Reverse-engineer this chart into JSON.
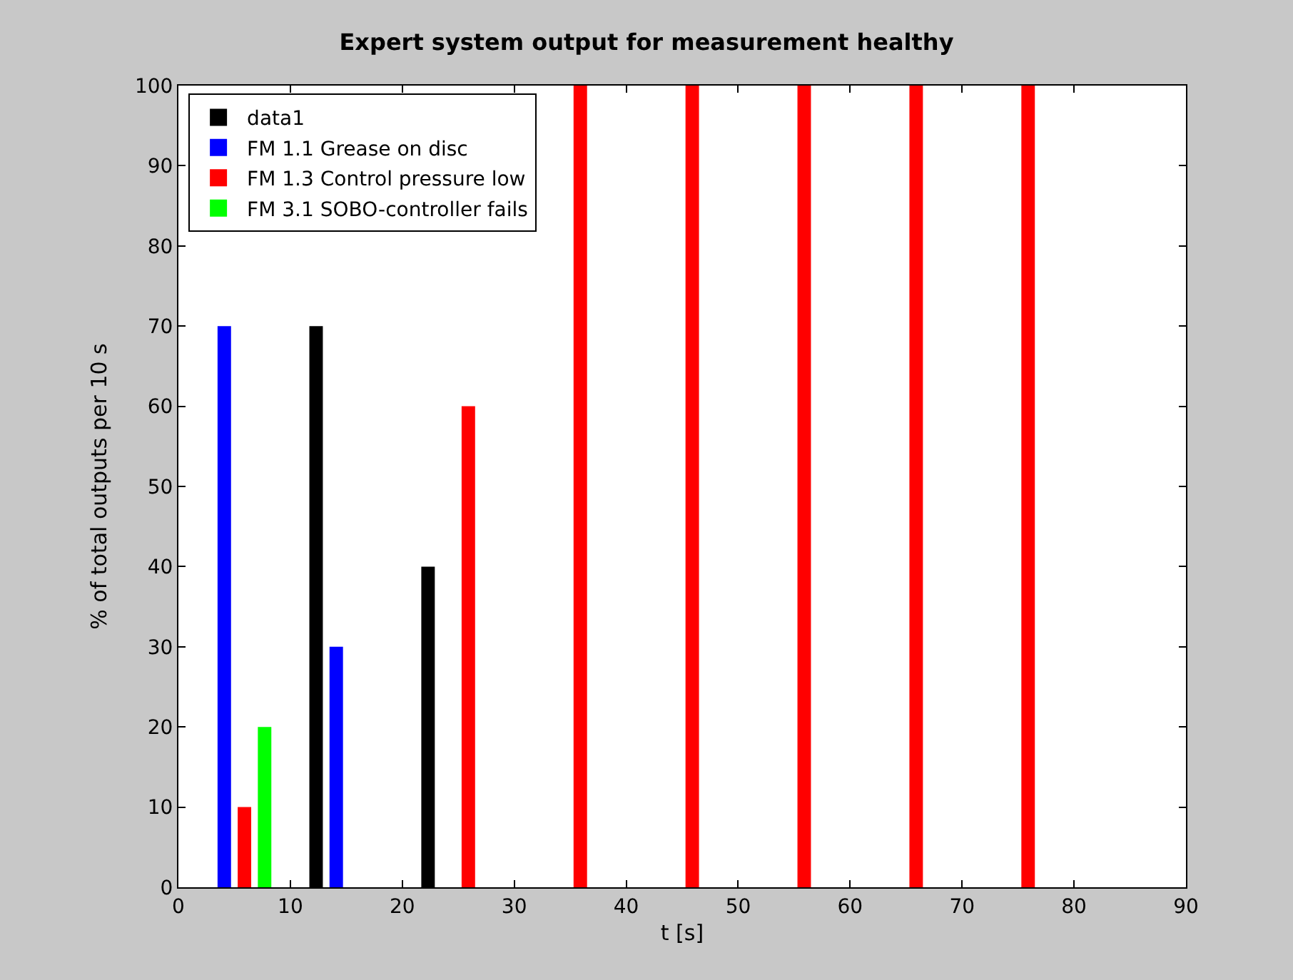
{
  "chart_data": {
    "type": "bar",
    "title": "Expert system output for measurement healthy",
    "xlabel": "t [s]",
    "ylabel": "% of total outputs per 10 s",
    "x": [
      5,
      15,
      25,
      35,
      45,
      55,
      65,
      75
    ],
    "series": [
      {
        "name": "data1",
        "color": "#000000",
        "values": [
          0,
          70,
          40,
          0,
          0,
          0,
          0,
          0
        ]
      },
      {
        "name": "FM 1.1 Grease on disc",
        "color": "#0000ff",
        "values": [
          70,
          30,
          0,
          0,
          0,
          0,
          0,
          0
        ]
      },
      {
        "name": "FM 1.3 Control pressure low",
        "color": "#ff0000",
        "values": [
          10,
          0,
          60,
          100,
          100,
          100,
          100,
          100
        ]
      },
      {
        "name": "FM 3.1 SOBO-controller fails",
        "color": "#00ff00",
        "values": [
          20,
          0,
          0,
          0,
          0,
          0,
          0,
          0
        ]
      }
    ],
    "xlim": [
      0,
      90
    ],
    "xticks": [
      0,
      10,
      20,
      30,
      40,
      50,
      60,
      70,
      80,
      90
    ],
    "ylim": [
      0,
      100
    ],
    "yticks": [
      0,
      10,
      20,
      30,
      40,
      50,
      60,
      70,
      80,
      90,
      100
    ],
    "legend": "top left"
  }
}
